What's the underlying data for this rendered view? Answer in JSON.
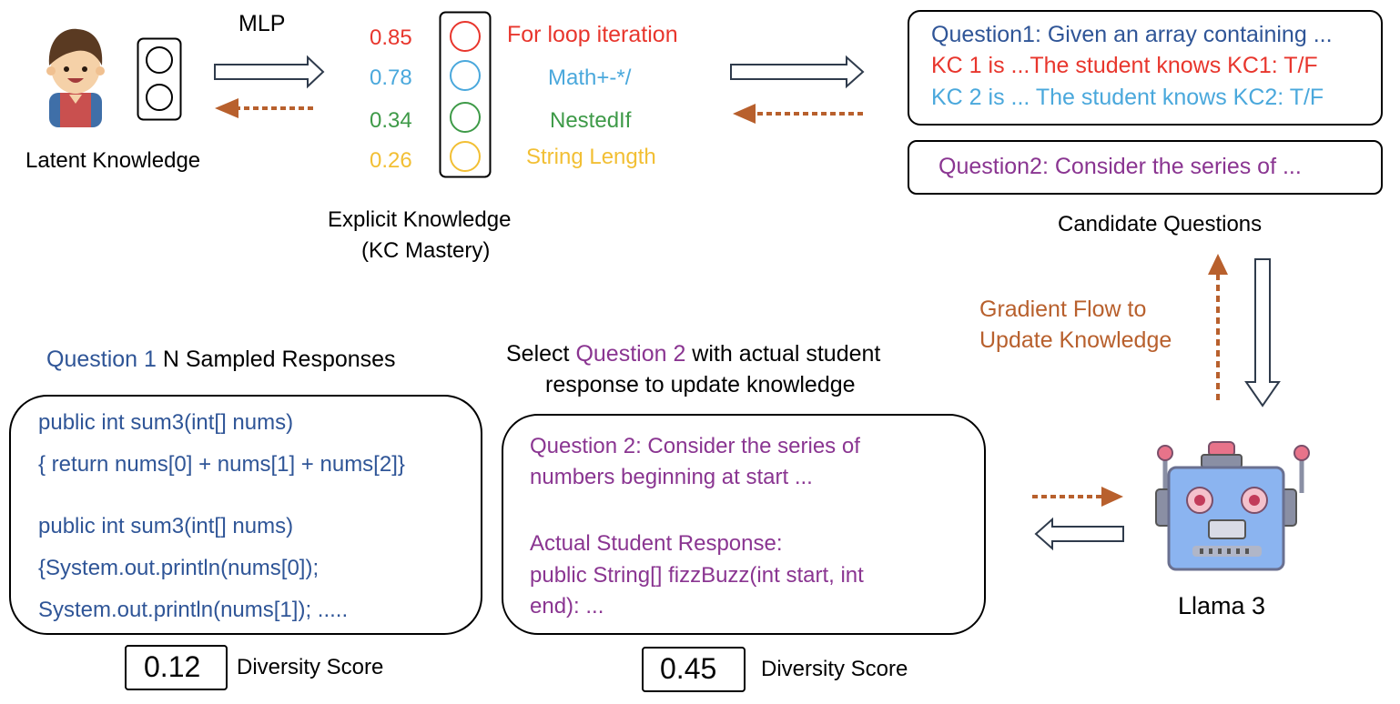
{
  "colors": {
    "blue": "#2f5597",
    "red": "#e8362d",
    "lightblue": "#4aa8dc",
    "green": "#3e9a48",
    "yellow": "#f2bf34",
    "purple": "#8a3591",
    "brown": "#b8602d",
    "black": "#000000"
  },
  "latent": {
    "label": "Latent Knowledge",
    "icon": "student-avatar-icon"
  },
  "mlp_label": "MLP",
  "kc": {
    "caption_line1": "Explicit Knowledge",
    "caption_line2": "(KC Mastery)",
    "items": [
      {
        "score": "0.85",
        "name": "For loop iteration",
        "color": "#e8362d"
      },
      {
        "score": "0.78",
        "name": "Math+-*/",
        "color": "#4aa8dc"
      },
      {
        "score": "0.34",
        "name": "NestedIf",
        "color": "#3e9a48"
      },
      {
        "score": "0.26",
        "name": "String Length",
        "color": "#f2bf34"
      }
    ]
  },
  "candidates": {
    "q1_line1": "Question1: Given an array containing ...",
    "q1_line2": "KC 1 is ...The student knows KC1: T/F",
    "q1_line3": "KC 2 is ... The student knows KC2: T/F",
    "q2": "Question2: Consider the series of ...",
    "caption": "Candidate Questions"
  },
  "gradient": {
    "line1": "Gradient Flow to",
    "line2": "Update Knowledge"
  },
  "llm": {
    "label": "Llama 3",
    "icon": "robot-icon"
  },
  "sampled": {
    "title_prefix": "Question 1",
    "title_suffix": " N Sampled Responses",
    "lines": [
      "public int sum3(int[] nums)",
      "{ return nums[0] + nums[1] + nums[2]}",
      "public int sum3(int[] nums)",
      "{System.out.println(nums[0]);",
      "System.out.println(nums[1]); ....."
    ],
    "score": "0.12",
    "score_label": "Diversity Score"
  },
  "selected": {
    "title_line1_prefix": "Select ",
    "title_line1_highlight": "Question 2",
    "title_line1_suffix": " with actual student",
    "title_line2": "response to update knowledge",
    "lines": [
      "Question 2: Consider the series of",
      "numbers beginning at start ...",
      "Actual Student Response:",
      "public String[] fizzBuzz(int start, int",
      "end): ..."
    ],
    "score": "0.45",
    "score_label": "Diversity Score"
  }
}
